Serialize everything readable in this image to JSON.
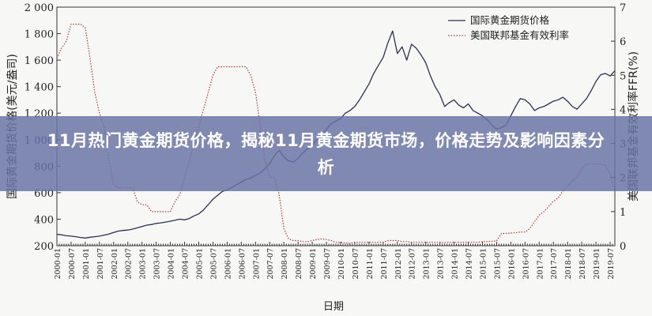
{
  "headline": "11月热门黄金期货价格，揭秘11月黄金期货市场，价格走势及影响因素分析",
  "chart_data": {
    "type": "line",
    "xlabel": "日期",
    "ylabel_left": "国际黄金期货价格(美元/盎司)",
    "ylabel_right": "美国联邦基金有效利率FFR(%)",
    "ylim_left": [
      200,
      2000
    ],
    "ylim_right": [
      0,
      7
    ],
    "yticks_left": [
      "200",
      "400",
      "600",
      "800",
      "1 000",
      "1 200",
      "1 400",
      "1 600",
      "1 800",
      "2 000"
    ],
    "yticks_right": [
      "0",
      "1",
      "2",
      "3",
      "4",
      "5",
      "6",
      "7"
    ],
    "x_tick_labels": [
      "2000-01",
      "2000-07",
      "2001-01",
      "2001-07",
      "2002-01",
      "2002-07",
      "2003-01",
      "2003-07",
      "2004-01",
      "2004-07",
      "2005-01",
      "2005-07",
      "2006-01",
      "2006-07",
      "2007-01",
      "2007-07",
      "2008-01",
      "2008-07",
      "2009-01",
      "2009-07",
      "2010-01",
      "2010-07",
      "2011-01",
      "2011-07",
      "2012-01",
      "2012-07",
      "2013-01",
      "2013-07",
      "2014-01",
      "2014-07",
      "2015-01",
      "2015-07",
      "2016-01",
      "2016-07",
      "2017-01",
      "2017-07",
      "2018-01",
      "2018-07",
      "2019-01",
      "2019-07"
    ],
    "legend_position": "top-right",
    "series": [
      {
        "name": "国际黄金期货价格",
        "axis": "left",
        "color": "#2b2f55",
        "style": "solid",
        "values": [
          [
            0,
            285
          ],
          [
            1,
            282
          ],
          [
            2,
            275
          ],
          [
            3,
            272
          ],
          [
            4,
            268
          ],
          [
            5,
            262
          ],
          [
            6,
            258
          ],
          [
            7,
            264
          ],
          [
            8,
            268
          ],
          [
            9,
            272
          ],
          [
            10,
            280
          ],
          [
            11,
            288
          ],
          [
            12,
            300
          ],
          [
            13,
            310
          ],
          [
            14,
            315
          ],
          [
            15,
            318
          ],
          [
            16,
            325
          ],
          [
            17,
            335
          ],
          [
            18,
            345
          ],
          [
            19,
            355
          ],
          [
            20,
            360
          ],
          [
            21,
            368
          ],
          [
            22,
            372
          ],
          [
            23,
            378
          ],
          [
            24,
            385
          ],
          [
            25,
            392
          ],
          [
            26,
            400
          ],
          [
            27,
            395
          ],
          [
            28,
            405
          ],
          [
            29,
            425
          ],
          [
            30,
            440
          ],
          [
            31,
            470
          ],
          [
            32,
            510
          ],
          [
            33,
            550
          ],
          [
            34,
            580
          ],
          [
            35,
            610
          ],
          [
            36,
            620
          ],
          [
            37,
            640
          ],
          [
            38,
            660
          ],
          [
            39,
            680
          ],
          [
            40,
            700
          ],
          [
            41,
            710
          ],
          [
            42,
            730
          ],
          [
            43,
            750
          ],
          [
            44,
            780
          ],
          [
            45,
            820
          ],
          [
            46,
            880
          ],
          [
            47,
            920
          ],
          [
            48,
            870
          ],
          [
            49,
            840
          ],
          [
            50,
            830
          ],
          [
            51,
            860
          ],
          [
            52,
            900
          ],
          [
            53,
            930
          ],
          [
            54,
            960
          ],
          [
            55,
            1000
          ],
          [
            56,
            1020
          ],
          [
            57,
            1080
          ],
          [
            58,
            1120
          ],
          [
            59,
            1140
          ],
          [
            60,
            1160
          ],
          [
            61,
            1200
          ],
          [
            62,
            1220
          ],
          [
            63,
            1250
          ],
          [
            64,
            1300
          ],
          [
            65,
            1360
          ],
          [
            66,
            1420
          ],
          [
            67,
            1500
          ],
          [
            68,
            1560
          ],
          [
            69,
            1620
          ],
          [
            70,
            1730
          ],
          [
            71,
            1820
          ],
          [
            72,
            1650
          ],
          [
            73,
            1700
          ],
          [
            74,
            1600
          ],
          [
            75,
            1720
          ],
          [
            76,
            1690
          ],
          [
            77,
            1640
          ],
          [
            78,
            1580
          ],
          [
            79,
            1480
          ],
          [
            80,
            1400
          ],
          [
            81,
            1340
          ],
          [
            82,
            1250
          ],
          [
            83,
            1280
          ],
          [
            84,
            1300
          ],
          [
            85,
            1260
          ],
          [
            86,
            1240
          ],
          [
            87,
            1270
          ],
          [
            88,
            1220
          ],
          [
            89,
            1200
          ],
          [
            90,
            1180
          ],
          [
            91,
            1150
          ],
          [
            92,
            1110
          ],
          [
            93,
            1080
          ],
          [
            94,
            1090
          ],
          [
            95,
            1110
          ],
          [
            96,
            1180
          ],
          [
            97,
            1250
          ],
          [
            98,
            1310
          ],
          [
            99,
            1300
          ],
          [
            100,
            1270
          ],
          [
            101,
            1220
          ],
          [
            102,
            1240
          ],
          [
            103,
            1250
          ],
          [
            104,
            1270
          ],
          [
            105,
            1290
          ],
          [
            106,
            1300
          ],
          [
            107,
            1320
          ],
          [
            108,
            1290
          ],
          [
            109,
            1250
          ],
          [
            110,
            1230
          ],
          [
            111,
            1270
          ],
          [
            112,
            1310
          ],
          [
            113,
            1370
          ],
          [
            114,
            1440
          ],
          [
            115,
            1490
          ],
          [
            116,
            1500
          ],
          [
            117,
            1480
          ],
          [
            118,
            1520
          ]
        ]
      },
      {
        "name": "美国联邦基金有效利率",
        "axis": "right",
        "color": "#b03a3a",
        "style": "dotted",
        "values": [
          [
            0,
            5.5
          ],
          [
            1,
            5.8
          ],
          [
            2,
            6.0
          ],
          [
            3,
            6.5
          ],
          [
            4,
            6.5
          ],
          [
            5,
            6.5
          ],
          [
            6,
            6.4
          ],
          [
            7,
            5.5
          ],
          [
            8,
            4.5
          ],
          [
            9,
            3.9
          ],
          [
            10,
            3.5
          ],
          [
            11,
            2.5
          ],
          [
            12,
            1.8
          ],
          [
            13,
            1.7
          ],
          [
            14,
            1.7
          ],
          [
            15,
            1.7
          ],
          [
            16,
            1.7
          ],
          [
            17,
            1.3
          ],
          [
            18,
            1.2
          ],
          [
            19,
            1.2
          ],
          [
            20,
            1.0
          ],
          [
            21,
            1.0
          ],
          [
            22,
            1.0
          ],
          [
            23,
            1.0
          ],
          [
            24,
            1.0
          ],
          [
            25,
            1.3
          ],
          [
            26,
            1.5
          ],
          [
            27,
            2.0
          ],
          [
            28,
            2.5
          ],
          [
            29,
            3.0
          ],
          [
            30,
            3.5
          ],
          [
            31,
            4.0
          ],
          [
            32,
            4.5
          ],
          [
            33,
            5.0
          ],
          [
            34,
            5.25
          ],
          [
            35,
            5.25
          ],
          [
            36,
            5.25
          ],
          [
            37,
            5.25
          ],
          [
            38,
            5.25
          ],
          [
            39,
            5.25
          ],
          [
            40,
            5.25
          ],
          [
            41,
            5.0
          ],
          [
            42,
            4.5
          ],
          [
            43,
            3.5
          ],
          [
            44,
            2.5
          ],
          [
            45,
            2.0
          ],
          [
            46,
            2.0
          ],
          [
            47,
            1.5
          ],
          [
            48,
            0.5
          ],
          [
            49,
            0.2
          ],
          [
            50,
            0.15
          ],
          [
            51,
            0.15
          ],
          [
            52,
            0.12
          ],
          [
            53,
            0.12
          ],
          [
            54,
            0.15
          ],
          [
            55,
            0.18
          ],
          [
            56,
            0.2
          ],
          [
            57,
            0.18
          ],
          [
            58,
            0.15
          ],
          [
            59,
            0.1
          ],
          [
            60,
            0.1
          ],
          [
            61,
            0.08
          ],
          [
            62,
            0.07
          ],
          [
            63,
            0.1
          ],
          [
            64,
            0.1
          ],
          [
            65,
            0.1
          ],
          [
            66,
            0.1
          ],
          [
            67,
            0.1
          ],
          [
            68,
            0.1
          ],
          [
            69,
            0.1
          ],
          [
            70,
            0.15
          ],
          [
            71,
            0.15
          ],
          [
            72,
            0.15
          ],
          [
            73,
            0.12
          ],
          [
            74,
            0.12
          ],
          [
            75,
            0.1
          ],
          [
            76,
            0.1
          ],
          [
            77,
            0.1
          ],
          [
            78,
            0.1
          ],
          [
            79,
            0.1
          ],
          [
            80,
            0.1
          ],
          [
            81,
            0.1
          ],
          [
            82,
            0.09
          ],
          [
            83,
            0.1
          ],
          [
            84,
            0.1
          ],
          [
            85,
            0.1
          ],
          [
            86,
            0.1
          ],
          [
            87,
            0.1
          ],
          [
            88,
            0.1
          ],
          [
            89,
            0.1
          ],
          [
            90,
            0.12
          ],
          [
            91,
            0.12
          ],
          [
            92,
            0.13
          ],
          [
            93,
            0.14
          ],
          [
            94,
            0.36
          ],
          [
            95,
            0.36
          ],
          [
            96,
            0.37
          ],
          [
            97,
            0.38
          ],
          [
            98,
            0.4
          ],
          [
            99,
            0.4
          ],
          [
            100,
            0.5
          ],
          [
            101,
            0.7
          ],
          [
            102,
            0.9
          ],
          [
            103,
            1.0
          ],
          [
            104,
            1.15
          ],
          [
            105,
            1.3
          ],
          [
            106,
            1.4
          ],
          [
            107,
            1.6
          ],
          [
            108,
            1.75
          ],
          [
            109,
            1.9
          ],
          [
            110,
            2.0
          ],
          [
            111,
            2.25
          ],
          [
            112,
            2.4
          ],
          [
            113,
            2.4
          ],
          [
            114,
            2.4
          ],
          [
            115,
            2.4
          ],
          [
            116,
            2.35
          ],
          [
            117,
            2.1
          ],
          [
            118,
            1.6
          ]
        ]
      }
    ]
  }
}
